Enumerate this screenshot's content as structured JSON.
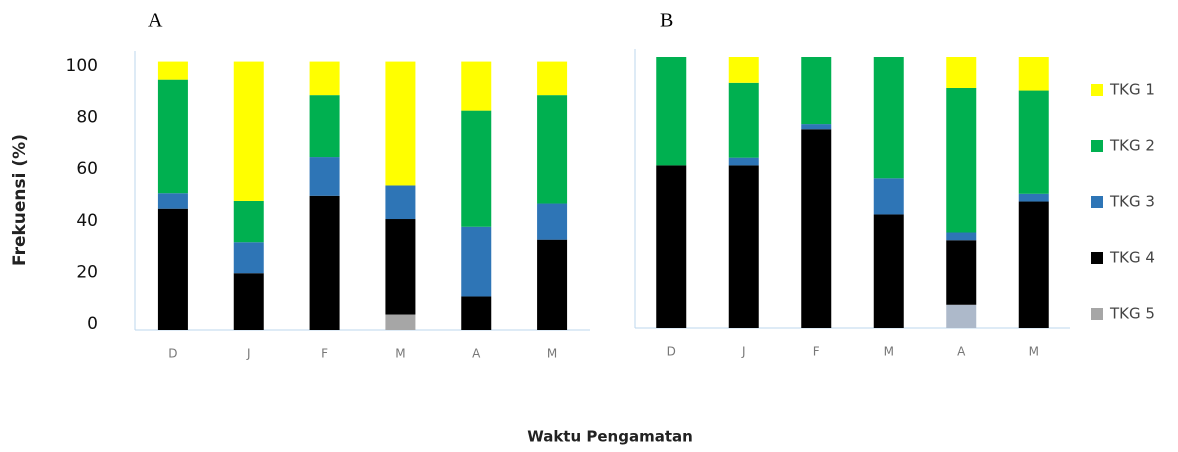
{
  "chart_data": [
    {
      "type": "bar",
      "stacked": true,
      "title": "A",
      "ylabel": "Frekuensi (%)",
      "xlabel": "Waktu Pengamatan",
      "categories": [
        "D",
        "J",
        "F",
        "M",
        "A",
        "M"
      ],
      "ylim": [
        0,
        105
      ],
      "yticks": [
        0,
        20,
        40,
        60,
        80,
        100
      ],
      "legend": "right",
      "series": [
        {
          "name": "TKG 5",
          "color": "#a6a6a6",
          "values": [
            0,
            0,
            0,
            6,
            0,
            0
          ]
        },
        {
          "name": "TKG 4",
          "color": "#000000",
          "values": [
            47,
            22,
            52,
            37,
            13,
            35
          ]
        },
        {
          "name": "TKG 3",
          "color": "#2e75b6",
          "values": [
            6,
            12,
            15,
            13,
            27,
            14
          ]
        },
        {
          "name": "TKG 2",
          "color": "#00b050",
          "values": [
            44,
            16,
            24,
            0,
            45,
            42
          ]
        },
        {
          "name": "TKG 1",
          "color": "#ffff00",
          "values": [
            7,
            54,
            13,
            48,
            19,
            13
          ]
        }
      ]
    },
    {
      "type": "bar",
      "stacked": true,
      "title": "B",
      "categories": [
        "D",
        "J",
        "F",
        "M",
        "A",
        "M"
      ],
      "ylim": [
        0,
        105
      ],
      "series": [
        {
          "name": "TKG 5",
          "color": "#adb9ca",
          "values": [
            0,
            0,
            0,
            0,
            9,
            0
          ]
        },
        {
          "name": "TKG 4",
          "color": "#000000",
          "values": [
            63,
            63,
            77,
            44,
            25,
            49
          ]
        },
        {
          "name": "TKG 3",
          "color": "#2e75b6",
          "values": [
            0,
            3,
            2,
            14,
            3,
            3
          ]
        },
        {
          "name": "TKG 2",
          "color": "#00b050",
          "values": [
            42,
            29,
            26,
            47,
            56,
            40
          ]
        },
        {
          "name": "TKG 1",
          "color": "#ffff00",
          "values": [
            0,
            10,
            0,
            0,
            12,
            13
          ]
        }
      ]
    }
  ]
}
